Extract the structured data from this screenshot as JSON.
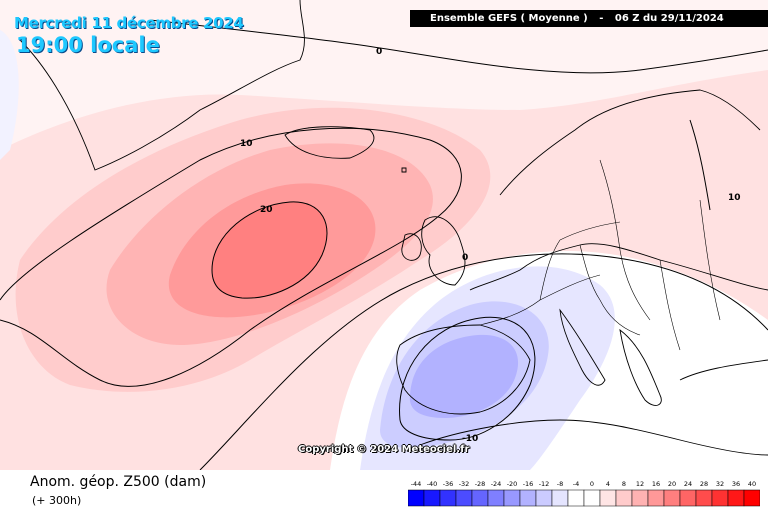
{
  "header": {
    "date": "Mercredi 11 décembre 2024",
    "time": "19:00 locale",
    "model": "Ensemble GEFS ( Moyenne )",
    "separator": "-",
    "run": "06 Z du 29/11/2024"
  },
  "map": {
    "contour_labels": [
      "0",
      "10",
      "20",
      "0",
      "10",
      "-10"
    ],
    "colors": {
      "land_line": "#000000",
      "contour_line": "#000000"
    }
  },
  "copyright": "Copyright © 2024 Meteociel.fr",
  "legend": {
    "title": "Anom. géop. Z500 (dam)",
    "forecast_hour": "(+ 300h)",
    "scale_values": [
      "-44",
      "-40",
      "-36",
      "-32",
      "-28",
      "-24",
      "-20",
      "-16",
      "-12",
      "-8",
      "-4",
      "0",
      "4",
      "8",
      "12",
      "16",
      "20",
      "24",
      "28",
      "32",
      "36",
      "40"
    ],
    "scale_colors": [
      "#0000ff",
      "#1818ff",
      "#3232ff",
      "#4c4cff",
      "#6565ff",
      "#7f7fff",
      "#9898ff",
      "#b2b2ff",
      "#cbcbff",
      "#e5e5ff",
      "#ffffff",
      "#ffffff",
      "#ffe5e5",
      "#ffcbcb",
      "#ffb2b2",
      "#ff9898",
      "#ff7f7f",
      "#ff6565",
      "#ff4c4c",
      "#ff3232",
      "#ff1818",
      "#ff0000"
    ]
  }
}
